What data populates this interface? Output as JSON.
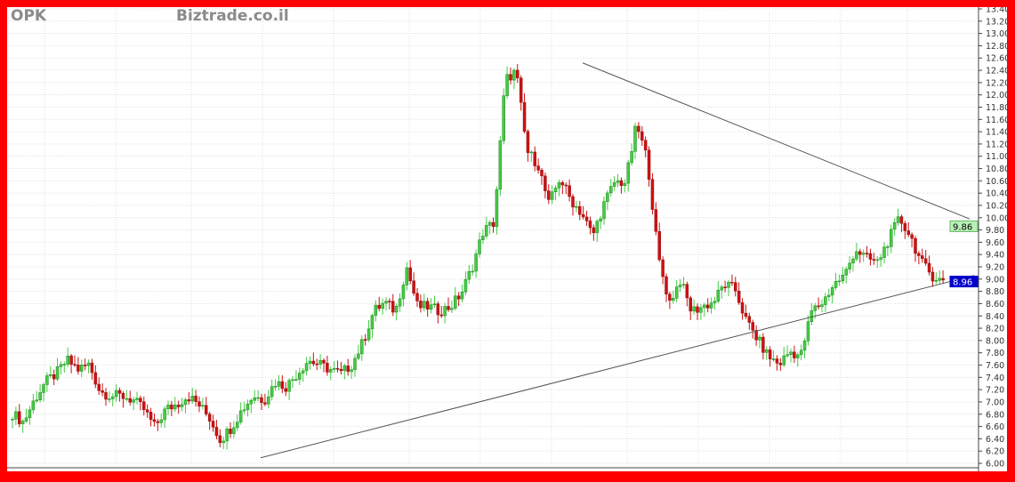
{
  "header": {
    "symbol": "OPK",
    "watermark": "Biztrade.co.il"
  },
  "chart_data": {
    "type": "candlestick",
    "title": "OPK",
    "y_axis": {
      "position": "right",
      "ylim": [
        6.0,
        13.4
      ],
      "tick_step": 0.2,
      "tick_labels": [
        "6.00",
        "6.20",
        "6.40",
        "6.60",
        "6.80",
        "7.00",
        "7.20",
        "7.40",
        "7.60",
        "7.80",
        "8.00",
        "8.20",
        "8.40",
        "8.60",
        "8.80",
        "9.00",
        "9.20",
        "9.40",
        "9.60",
        "9.80",
        "10.00",
        "10.20",
        "10.40",
        "10.60",
        "10.80",
        "11.00",
        "11.20",
        "11.40",
        "11.60",
        "11.80",
        "12.00",
        "12.20",
        "12.40",
        "12.60",
        "12.80",
        "13.00",
        "13.20",
        "13.40"
      ]
    },
    "grid": true,
    "colors": {
      "up": "#44cc44",
      "down": "#cc1111",
      "border": "#ff0000",
      "trendline": "#555555"
    },
    "closes": [
      6.81,
      6.67,
      7.03,
      7.32,
      7.46,
      7.68,
      7.53,
      7.61,
      7.17,
      7.1,
      7.1,
      7.03,
      6.88,
      6.59,
      6.88,
      6.96,
      7.1,
      6.96,
      6.74,
      6.38,
      6.59,
      6.88,
      7.1,
      7.03,
      7.32,
      7.25,
      7.46,
      7.68,
      7.61,
      7.53,
      7.46,
      7.61,
      7.97,
      8.48,
      8.62,
      8.48,
      9.2,
      8.55,
      8.55,
      8.48,
      8.55,
      8.77,
      9.2,
      9.78,
      9.92,
      12.24,
      12.39,
      11.08,
      10.87,
      10.21,
      10.65,
      10.29,
      10.07,
      9.71,
      10.21,
      10.58,
      10.58,
      11.52,
      10.94,
      9.34,
      8.62,
      8.98,
      8.48,
      8.55,
      8.62,
      8.91,
      8.84,
      8.33,
      8.04,
      7.75,
      7.61,
      7.82,
      7.75,
      8.48,
      8.62,
      8.91,
      9.06,
      9.49,
      9.34,
      9.27,
      9.63,
      9.99,
      9.71,
      9.27,
      9.06,
      8.96
    ],
    "peak_high": 12.95,
    "trendlines": [
      {
        "name": "",
        "from": 12.52,
        "to": 9.98,
        "type": "resistance"
      },
      {
        "name": "",
        "from": 6.09,
        "to": 9.06,
        "type": "support"
      }
    ],
    "price_markers": [
      {
        "label": "9.86",
        "value": 9.86,
        "color": "#b8f0b8"
      },
      {
        "label": "8.96",
        "value": 8.96,
        "color": "#0000cc"
      }
    ]
  }
}
